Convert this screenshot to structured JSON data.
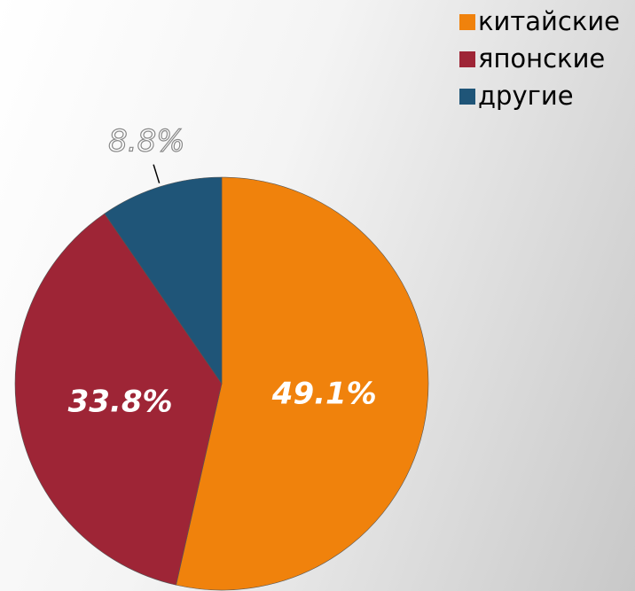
{
  "chart_data": {
    "type": "pie",
    "categories": [
      "китайские",
      "японские",
      "другие"
    ],
    "values": [
      49.1,
      33.8,
      8.8
    ],
    "value_labels": [
      "49.1%",
      "33.8%",
      "8.8%"
    ],
    "colors": [
      "#f0820c",
      "#9e2536",
      "#1f5578"
    ],
    "legend": "top-right"
  }
}
